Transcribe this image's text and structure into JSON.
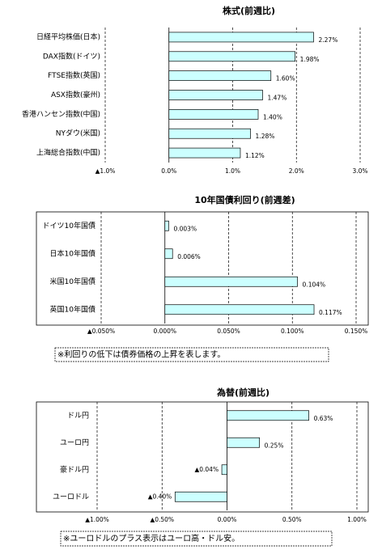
{
  "chart_data": [
    {
      "type": "bar",
      "orientation": "horizontal",
      "title": "株式(前週比)",
      "categories": [
        "日経平均株価(日本)",
        "DAX指数(ドイツ)",
        "FTSE指数(英国)",
        "ASX指数(豪州)",
        "香港ハンセン指数(中国)",
        "NYダウ(米国)",
        "上海総合指数(中国)"
      ],
      "values": [
        2.27,
        1.98,
        1.6,
        1.47,
        1.4,
        1.28,
        1.12
      ],
      "value_labels": [
        "2.27%",
        "1.98%",
        "1.60%",
        "1.47%",
        "1.40%",
        "1.28%",
        "1.12%"
      ],
      "color": "#ccffff",
      "xlim": [
        -1,
        3
      ],
      "xticks": [
        {
          "value": -1,
          "label": "▲1.0%"
        },
        {
          "value": 0,
          "label": "0.0%"
        },
        {
          "value": 1,
          "label": "1.0%"
        },
        {
          "value": 2,
          "label": "2.0%"
        },
        {
          "value": 3,
          "label": "3.0%"
        }
      ],
      "grid": true
    },
    {
      "type": "bar",
      "orientation": "horizontal",
      "title": "10年国債利回り(前週差)",
      "categories": [
        "ドイツ10年国債",
        "日本10年国債",
        "米国10年国債",
        "英国10年国債"
      ],
      "values": [
        0.003,
        0.006,
        0.104,
        0.117
      ],
      "value_labels": [
        "0.003%",
        "0.006%",
        "0.104%",
        "0.117%"
      ],
      "color": "#ccffff",
      "xlim": [
        -0.05,
        0.15
      ],
      "xticks": [
        {
          "value": -0.05,
          "label": "▲0.050%"
        },
        {
          "value": 0,
          "label": "0.000%"
        },
        {
          "value": 0.05,
          "label": "0.050%"
        },
        {
          "value": 0.1,
          "label": "0.100%"
        },
        {
          "value": 0.15,
          "label": "0.150%"
        }
      ],
      "grid": true,
      "note": "※利回りの低下は債券価格の上昇を表します。"
    },
    {
      "type": "bar",
      "orientation": "horizontal",
      "title": "為替(前週比)",
      "categories": [
        "ドル円",
        "ユーロ円",
        "豪ドル円",
        "ユーロドル"
      ],
      "values": [
        0.63,
        0.25,
        -0.04,
        -0.4
      ],
      "value_labels": [
        "0.63%",
        "0.25%",
        "▲0.04%",
        "▲0.40%"
      ],
      "color": "#ccffff",
      "xlim": [
        -1,
        1
      ],
      "xticks": [
        {
          "value": -1,
          "label": "▲1.00%"
        },
        {
          "value": -0.5,
          "label": "▲0.50%"
        },
        {
          "value": 0,
          "label": "0.00%"
        },
        {
          "value": 0.5,
          "label": "0.50%"
        },
        {
          "value": 1,
          "label": "1.00%"
        }
      ],
      "grid": true,
      "note": "※ユーロドルのプラス表示はユーロ高・ドル安。"
    }
  ]
}
